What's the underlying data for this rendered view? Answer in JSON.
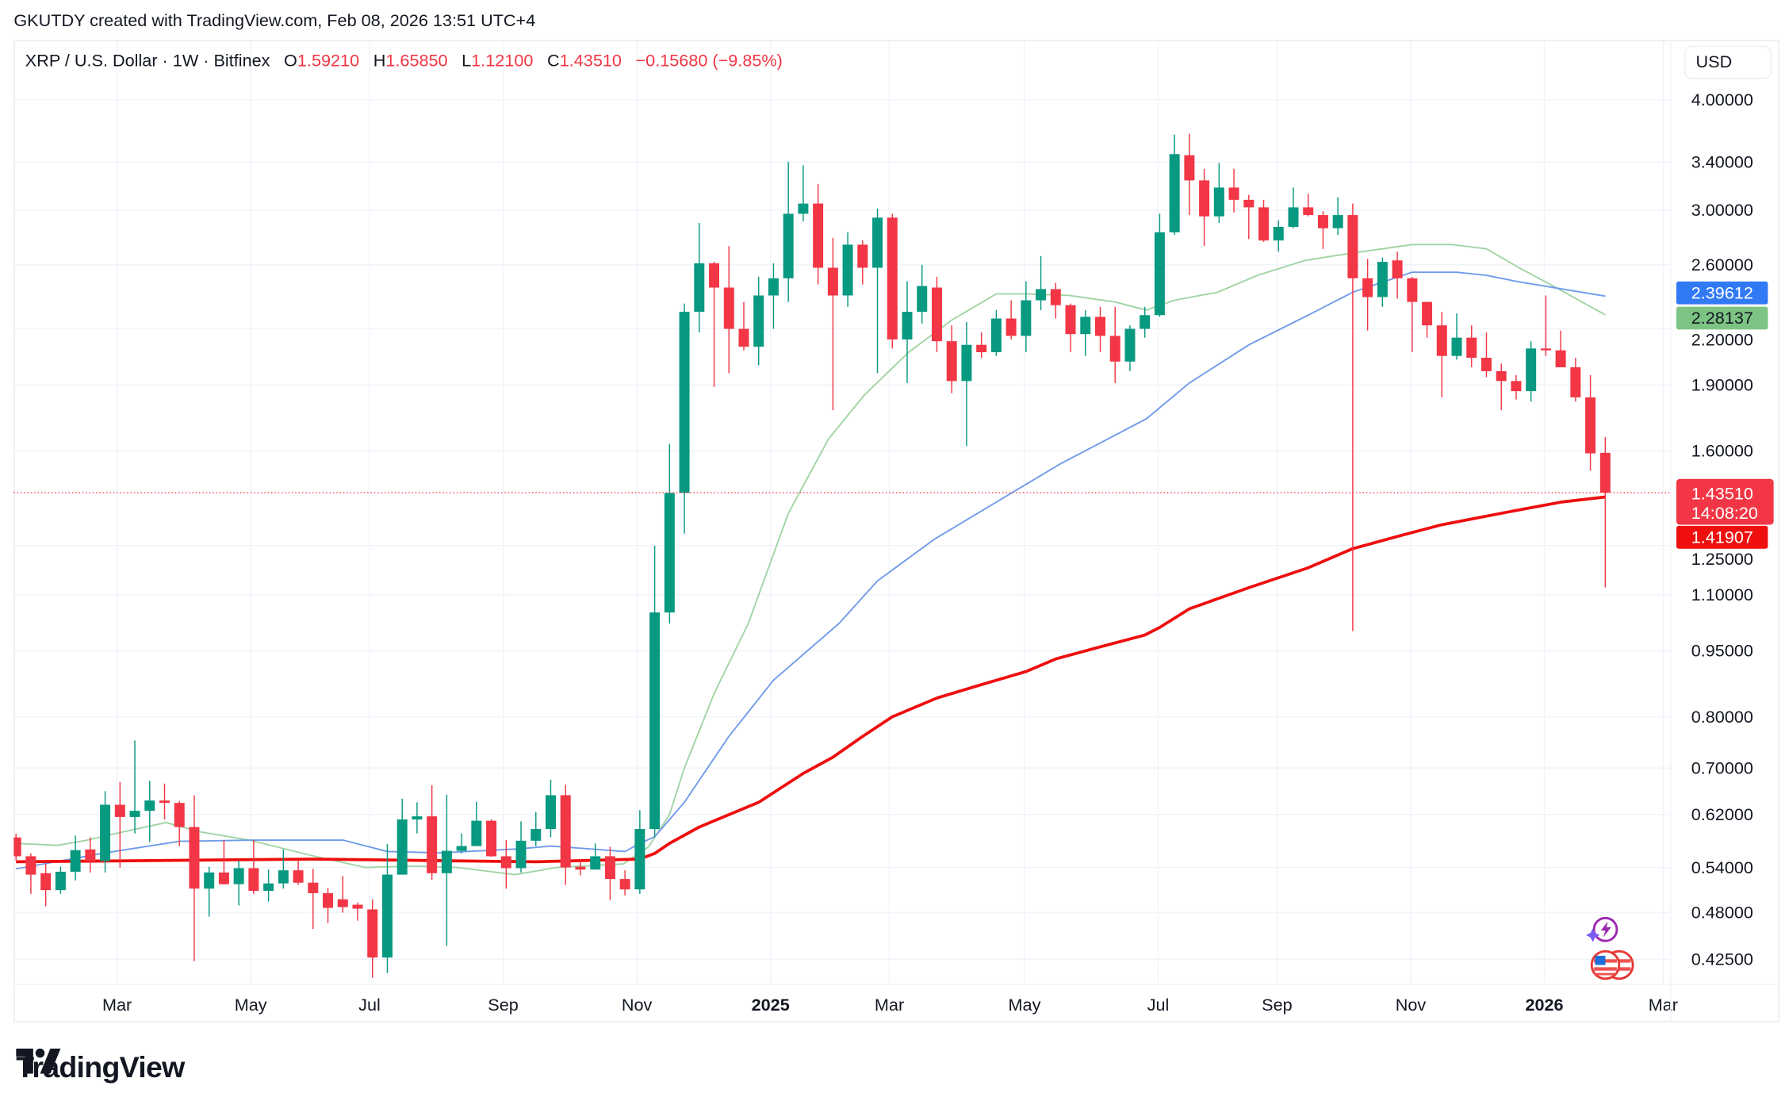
{
  "attribution": "GKUTDY created with TradingView.com, Feb 08, 2026 13:51 UTC+4",
  "legend": {
    "symbol": "XRP / U.S. Dollar · 1W · Bitfinex",
    "o_key": "O",
    "o": "1.59210",
    "h_key": "H",
    "h": "1.65850",
    "l_key": "L",
    "l": "1.12100",
    "c_key": "C",
    "c": "1.43510",
    "change": "−0.15680 (−9.85%)"
  },
  "currency_button": "USD",
  "logo": "TradingView",
  "colors": {
    "up": "#089981",
    "down": "#f23645",
    "ma_fast": "#9fd4a3",
    "ma_mid": "#6f9be8",
    "ma_slow": "#ee0e0e",
    "label_blue": "#3179f5",
    "label_green": "#7dc383",
    "label_last": "#f23645",
    "label_slow": "#ef0f0f"
  },
  "chart_data": {
    "type": "candlestick",
    "scale": "log",
    "ylim": [
      0.4,
      4.2
    ],
    "grid": true,
    "y_ticks": [
      "4.00000",
      "3.40000",
      "3.00000",
      "2.60000",
      "2.20000",
      "1.90000",
      "1.60000",
      "1.25000",
      "1.10000",
      "0.95000",
      "0.80000",
      "0.70000",
      "0.62000",
      "0.54000",
      "0.48000",
      "0.42500"
    ],
    "x_ticks": [
      {
        "label": "Mar",
        "week": 6.8,
        "bold": false
      },
      {
        "label": "May",
        "week": 15.8,
        "bold": false
      },
      {
        "label": "Jul",
        "week": 23.8,
        "bold": false
      },
      {
        "label": "Sep",
        "week": 32.8,
        "bold": false
      },
      {
        "label": "Nov",
        "week": 41.8,
        "bold": false
      },
      {
        "label": "2025",
        "week": 50.8,
        "bold": true
      },
      {
        "label": "Mar",
        "week": 58.8,
        "bold": false
      },
      {
        "label": "May",
        "week": 67.9,
        "bold": false
      },
      {
        "label": "Jul",
        "week": 76.9,
        "bold": false
      },
      {
        "label": "Sep",
        "week": 84.9,
        "bold": false
      },
      {
        "label": "Nov",
        "week": 93.9,
        "bold": false
      },
      {
        "label": "2026",
        "week": 102.9,
        "bold": true
      },
      {
        "label": "Mar",
        "week": 110.9,
        "bold": false
      }
    ],
    "candles_ohlc": [
      [
        0.584,
        0.59,
        0.55,
        0.556
      ],
      [
        0.556,
        0.56,
        0.504,
        0.53
      ],
      [
        0.532,
        0.545,
        0.488,
        0.509
      ],
      [
        0.509,
        0.541,
        0.504,
        0.534
      ],
      [
        0.534,
        0.587,
        0.522,
        0.565
      ],
      [
        0.566,
        0.584,
        0.533,
        0.549
      ],
      [
        0.549,
        0.659,
        0.533,
        0.636
      ],
      [
        0.636,
        0.675,
        0.54,
        0.616
      ],
      [
        0.616,
        0.752,
        0.59,
        0.626
      ],
      [
        0.626,
        0.677,
        0.577,
        0.643
      ],
      [
        0.643,
        0.672,
        0.612,
        0.639
      ],
      [
        0.639,
        0.642,
        0.571,
        0.6
      ],
      [
        0.6,
        0.652,
        0.423,
        0.511
      ],
      [
        0.511,
        0.541,
        0.475,
        0.533
      ],
      [
        0.533,
        0.58,
        0.516,
        0.517
      ],
      [
        0.517,
        0.55,
        0.489,
        0.539
      ],
      [
        0.539,
        0.58,
        0.504,
        0.508
      ],
      [
        0.508,
        0.537,
        0.494,
        0.518
      ],
      [
        0.518,
        0.566,
        0.511,
        0.536
      ],
      [
        0.536,
        0.55,
        0.516,
        0.519
      ],
      [
        0.519,
        0.538,
        0.46,
        0.505
      ],
      [
        0.505,
        0.512,
        0.467,
        0.486
      ],
      [
        0.497,
        0.528,
        0.48,
        0.487
      ],
      [
        0.49,
        0.493,
        0.47,
        0.485
      ],
      [
        0.484,
        0.497,
        0.405,
        0.427
      ],
      [
        0.427,
        0.574,
        0.41,
        0.53
      ],
      [
        0.53,
        0.646,
        0.53,
        0.612
      ],
      [
        0.612,
        0.64,
        0.59,
        0.617
      ],
      [
        0.617,
        0.669,
        0.523,
        0.532
      ],
      [
        0.532,
        0.653,
        0.44,
        0.564
      ],
      [
        0.564,
        0.59,
        0.56,
        0.571
      ],
      [
        0.571,
        0.641,
        0.571,
        0.61
      ],
      [
        0.61,
        0.612,
        0.555,
        0.556
      ],
      [
        0.556,
        0.58,
        0.511,
        0.539
      ],
      [
        0.539,
        0.609,
        0.533,
        0.579
      ],
      [
        0.579,
        0.624,
        0.571,
        0.597
      ],
      [
        0.597,
        0.679,
        0.584,
        0.652
      ],
      [
        0.652,
        0.67,
        0.516,
        0.54
      ],
      [
        0.541,
        0.552,
        0.529,
        0.537
      ],
      [
        0.537,
        0.575,
        0.537,
        0.556
      ],
      [
        0.556,
        0.57,
        0.496,
        0.524
      ],
      [
        0.524,
        0.536,
        0.502,
        0.51
      ],
      [
        0.51,
        0.627,
        0.504,
        0.597
      ],
      [
        0.597,
        1.25,
        0.585,
        1.05
      ],
      [
        1.05,
        1.63,
        1.02,
        1.434
      ],
      [
        1.434,
        2.35,
        1.29,
        2.3
      ],
      [
        2.3,
        2.9,
        2.18,
        2.61
      ],
      [
        2.61,
        2.62,
        1.89,
        2.45
      ],
      [
        2.45,
        2.73,
        1.96,
        2.2
      ],
      [
        2.2,
        2.36,
        2.08,
        2.1
      ],
      [
        2.1,
        2.52,
        2.0,
        2.4
      ],
      [
        2.4,
        2.61,
        2.2,
        2.51
      ],
      [
        2.51,
        3.4,
        2.36,
        2.97
      ],
      [
        2.97,
        3.37,
        2.91,
        3.05
      ],
      [
        3.05,
        3.21,
        2.47,
        2.58
      ],
      [
        2.58,
        2.79,
        1.78,
        2.4
      ],
      [
        2.4,
        2.83,
        2.33,
        2.74
      ],
      [
        2.74,
        2.77,
        2.47,
        2.58
      ],
      [
        2.58,
        3.01,
        1.96,
        2.94
      ],
      [
        2.94,
        2.97,
        2.09,
        2.14
      ],
      [
        2.14,
        2.49,
        1.91,
        2.3
      ],
      [
        2.3,
        2.6,
        2.23,
        2.46
      ],
      [
        2.45,
        2.52,
        2.07,
        2.13
      ],
      [
        2.13,
        2.22,
        1.86,
        1.92
      ],
      [
        1.92,
        2.24,
        1.62,
        2.11
      ],
      [
        2.11,
        2.18,
        2.04,
        2.07
      ],
      [
        2.07,
        2.31,
        2.05,
        2.26
      ],
      [
        2.26,
        2.37,
        2.14,
        2.16
      ],
      [
        2.16,
        2.49,
        2.07,
        2.37
      ],
      [
        2.37,
        2.66,
        2.31,
        2.44
      ],
      [
        2.44,
        2.48,
        2.26,
        2.34
      ],
      [
        2.34,
        2.35,
        2.07,
        2.17
      ],
      [
        2.17,
        2.31,
        2.05,
        2.27
      ],
      [
        2.27,
        2.33,
        2.07,
        2.16
      ],
      [
        2.16,
        2.33,
        1.91,
        2.02
      ],
      [
        2.02,
        2.22,
        1.97,
        2.2
      ],
      [
        2.2,
        2.33,
        2.15,
        2.28
      ],
      [
        2.28,
        2.97,
        2.27,
        2.83
      ],
      [
        2.83,
        3.65,
        2.81,
        3.47
      ],
      [
        3.46,
        3.66,
        2.96,
        3.24
      ],
      [
        3.24,
        3.34,
        2.73,
        2.95
      ],
      [
        2.95,
        3.39,
        2.9,
        3.18
      ],
      [
        3.18,
        3.34,
        2.98,
        3.08
      ],
      [
        3.08,
        3.12,
        2.78,
        3.02
      ],
      [
        3.02,
        3.08,
        2.76,
        2.77
      ],
      [
        2.77,
        2.92,
        2.69,
        2.87
      ],
      [
        2.87,
        3.18,
        2.86,
        3.02
      ],
      [
        3.02,
        3.13,
        2.95,
        2.96
      ],
      [
        2.96,
        2.99,
        2.71,
        2.86
      ],
      [
        2.86,
        3.1,
        2.81,
        2.96
      ],
      [
        2.96,
        3.05,
        1.0,
        2.51
      ],
      [
        2.51,
        2.64,
        2.19,
        2.39
      ],
      [
        2.39,
        2.65,
        2.33,
        2.62
      ],
      [
        2.63,
        2.69,
        2.38,
        2.51
      ],
      [
        2.51,
        2.52,
        2.07,
        2.36
      ],
      [
        2.36,
        2.36,
        2.15,
        2.22
      ],
      [
        2.22,
        2.3,
        1.84,
        2.05
      ],
      [
        2.05,
        2.29,
        2.03,
        2.15
      ],
      [
        2.15,
        2.22,
        1.99,
        2.04
      ],
      [
        2.04,
        2.18,
        1.94,
        1.97
      ],
      [
        1.97,
        2.01,
        1.78,
        1.92
      ],
      [
        1.92,
        1.95,
        1.83,
        1.87
      ],
      [
        1.87,
        2.13,
        1.82,
        2.09
      ],
      [
        2.09,
        2.4,
        2.05,
        2.08
      ],
      [
        2.08,
        2.19,
        1.99,
        1.99
      ],
      [
        1.99,
        2.04,
        1.82,
        1.84
      ],
      [
        1.84,
        1.95,
        1.52,
        1.59
      ],
      [
        1.5921,
        1.6585,
        1.121,
        1.4351
      ]
    ],
    "moving_averages": [
      {
        "key": "ma_fast",
        "last": "2.28137",
        "points": [
          [
            0,
            0.575
          ],
          [
            2.8,
            0.572
          ],
          [
            4.8,
            0.58
          ],
          [
            7.3,
            0.593
          ],
          [
            10.1,
            0.607
          ],
          [
            12.3,
            0.593
          ],
          [
            15.7,
            0.58
          ],
          [
            19.9,
            0.557
          ],
          [
            23.5,
            0.54
          ],
          [
            26.9,
            0.542
          ],
          [
            29.7,
            0.54
          ],
          [
            33.6,
            0.53
          ],
          [
            36.4,
            0.54
          ],
          [
            40.9,
            0.545
          ],
          [
            42.6,
            0.57
          ],
          [
            44,
            0.62
          ],
          [
            45,
            0.7
          ],
          [
            47,
            0.85
          ],
          [
            49.3,
            1.02
          ],
          [
            52,
            1.36
          ],
          [
            54.7,
            1.65
          ],
          [
            57.1,
            1.85
          ],
          [
            60.1,
            2.07
          ],
          [
            63,
            2.25
          ],
          [
            66,
            2.41
          ],
          [
            68,
            2.41
          ],
          [
            70.9,
            2.4
          ],
          [
            74,
            2.36
          ],
          [
            76.1,
            2.31
          ],
          [
            78,
            2.37
          ],
          [
            80.9,
            2.42
          ],
          [
            83.6,
            2.53
          ],
          [
            86.8,
            2.63
          ],
          [
            89.9,
            2.68
          ],
          [
            94,
            2.74
          ],
          [
            96.7,
            2.74
          ],
          [
            99,
            2.71
          ],
          [
            101.2,
            2.58
          ],
          [
            103.5,
            2.46
          ],
          [
            107,
            2.28137
          ]
        ]
      },
      {
        "key": "ma_mid",
        "last": "2.39612",
        "points": [
          [
            0,
            0.538
          ],
          [
            6,
            0.561
          ],
          [
            11,
            0.578
          ],
          [
            16,
            0.58
          ],
          [
            22,
            0.58
          ],
          [
            25,
            0.563
          ],
          [
            28.5,
            0.561
          ],
          [
            34,
            0.567
          ],
          [
            36,
            0.571
          ],
          [
            41,
            0.563
          ],
          [
            42,
            0.575
          ],
          [
            43,
            0.585
          ],
          [
            45,
            0.64
          ],
          [
            48,
            0.76
          ],
          [
            51,
            0.88
          ],
          [
            55.4,
            1.02
          ],
          [
            58,
            1.14
          ],
          [
            61.8,
            1.27
          ],
          [
            67.2,
            1.44
          ],
          [
            70.4,
            1.55
          ],
          [
            76.1,
            1.74
          ],
          [
            79,
            1.91
          ],
          [
            83,
            2.11
          ],
          [
            87,
            2.28
          ],
          [
            90,
            2.42
          ],
          [
            94,
            2.55
          ],
          [
            97,
            2.55
          ],
          [
            99,
            2.53
          ],
          [
            101,
            2.49
          ],
          [
            103.5,
            2.45
          ],
          [
            107,
            2.39612
          ]
        ]
      },
      {
        "key": "ma_slow",
        "last": "1.41907",
        "points": [
          [
            0,
            0.548
          ],
          [
            20,
            0.552
          ],
          [
            35,
            0.548
          ],
          [
            42,
            0.552
          ],
          [
            43,
            0.56
          ],
          [
            44,
            0.575
          ],
          [
            46,
            0.6
          ],
          [
            50,
            0.64
          ],
          [
            53,
            0.69
          ],
          [
            55,
            0.72
          ],
          [
            57,
            0.76
          ],
          [
            59,
            0.8
          ],
          [
            62,
            0.84
          ],
          [
            65,
            0.87
          ],
          [
            68,
            0.9
          ],
          [
            70,
            0.93
          ],
          [
            73,
            0.96
          ],
          [
            76,
            0.99
          ],
          [
            77,
            1.01
          ],
          [
            79,
            1.06
          ],
          [
            83,
            1.12
          ],
          [
            87,
            1.18
          ],
          [
            90,
            1.24
          ],
          [
            93,
            1.28
          ],
          [
            96,
            1.32
          ],
          [
            100,
            1.36
          ],
          [
            104,
            1.4
          ],
          [
            107,
            1.41907
          ]
        ]
      }
    ],
    "last_price": "1.43510",
    "countdown": "14:08:20"
  }
}
